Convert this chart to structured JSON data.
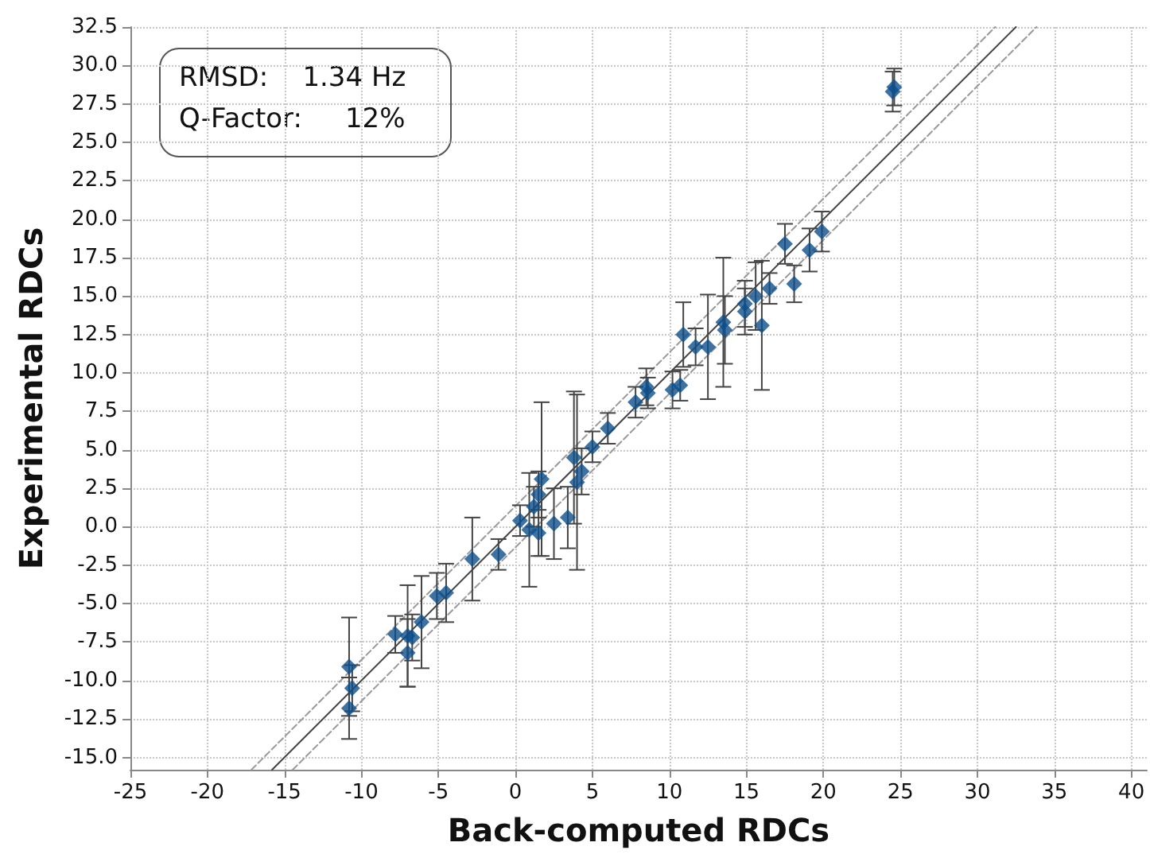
{
  "chart_data": {
    "type": "scatter",
    "xlabel": "Back-computed RDCs",
    "ylabel": "Experimental RDCs",
    "annotations": [
      "RMSD:    1.34 Hz",
      "Q-Factor:     12%"
    ],
    "xlim": [
      -25,
      41
    ],
    "ylim": [
      -15.8,
      32.5
    ],
    "xticks": [
      -25,
      -20,
      -15,
      -10,
      -5,
      0,
      5,
      10,
      15,
      20,
      25,
      30,
      35,
      40
    ],
    "yticks": [
      {
        "value": -15,
        "label": "-15.0"
      },
      {
        "value": -12.5,
        "label": "-12.5"
      },
      {
        "value": -10,
        "label": "-10.0"
      },
      {
        "value": -7.5,
        "label": "-7.5"
      },
      {
        "value": -5,
        "label": "-5.0"
      },
      {
        "value": -2.5,
        "label": "-2.5"
      },
      {
        "value": 0,
        "label": "0.0"
      },
      {
        "value": 2.5,
        "label": "2.5"
      },
      {
        "value": 5,
        "label": "5.0"
      },
      {
        "value": 7.5,
        "label": "7.5"
      },
      {
        "value": 10,
        "label": "10.0"
      },
      {
        "value": 12.5,
        "label": "12.5"
      },
      {
        "value": 15,
        "label": "15.0"
      },
      {
        "value": 17.5,
        "label": "17.5"
      },
      {
        "value": 20,
        "label": "20.0"
      },
      {
        "value": 22.5,
        "label": "22.5"
      },
      {
        "value": 25,
        "label": "25.0"
      },
      {
        "value": 27.5,
        "label": "27.5"
      },
      {
        "value": 30,
        "label": "30.0"
      },
      {
        "value": 32.5,
        "label": "32.5"
      }
    ],
    "grid": true,
    "series": [
      {
        "type": "line",
        "color": "#444444",
        "line_style": "solid",
        "marker": "none",
        "x": [
          -15.8,
          32.5
        ],
        "values": [
          -15.8,
          32.5
        ]
      },
      {
        "type": "line",
        "color": "#999999",
        "line_style": "dashed",
        "marker": "none",
        "x": [
          -17.14,
          31.16
        ],
        "values": [
          -15.8,
          32.5
        ]
      },
      {
        "type": "line",
        "color": "#999999",
        "line_style": "dashed",
        "marker": "none",
        "x": [
          -14.46,
          33.84
        ],
        "values": [
          -15.8,
          32.5
        ]
      },
      {
        "color": "#0d4f8b",
        "marker": "diamond",
        "x": [
          24.6,
          24.5,
          19.9,
          19.1,
          17.5,
          18.1,
          16.5,
          15.6,
          14.9,
          14.9,
          16.0,
          13.5,
          13.6,
          10.9,
          11.7,
          12.5,
          8.5,
          8.6,
          7.8,
          10.7,
          10.2,
          6.0,
          5.0,
          3.8,
          4.3,
          4.0,
          1.7,
          1.5,
          1.2,
          0.3,
          2.5,
          3.4,
          0.9,
          1.5,
          -1.1,
          -2.8,
          -4.5,
          -5.1,
          -6.1,
          -7.8,
          -7.0,
          -6.7,
          -7.0,
          -10.8,
          -10.6,
          -10.8
        ],
        "values": [
          28.6,
          28.3,
          19.2,
          18.0,
          18.4,
          15.8,
          15.5,
          15.0,
          14.5,
          14.0,
          13.1,
          13.3,
          12.8,
          12.5,
          11.7,
          11.7,
          9.1,
          8.7,
          8.1,
          9.2,
          8.9,
          6.4,
          5.2,
          4.5,
          3.6,
          2.9,
          3.1,
          2.1,
          1.3,
          0.4,
          0.2,
          0.6,
          -0.2,
          -0.4,
          -1.8,
          -2.1,
          -4.3,
          -4.5,
          -6.2,
          -7.0,
          -7.1,
          -7.2,
          -8.2,
          -9.1,
          -10.5,
          -11.8
        ],
        "errors": [
          1.2,
          1.3,
          1.3,
          1.4,
          1.3,
          1.2,
          1.0,
          2.2,
          1.5,
          1.5,
          4.2,
          4.2,
          2.2,
          2.1,
          1.2,
          3.4,
          1.2,
          1.0,
          1.0,
          1.0,
          1.2,
          1.0,
          1.0,
          4.3,
          1.5,
          5.7,
          5.0,
          1.5,
          1.3,
          1.0,
          2.3,
          2.0,
          3.7,
          1.5,
          1.0,
          2.7,
          1.9,
          1.5,
          3.0,
          1.2,
          3.3,
          1.5,
          2.2,
          3.2,
          1.5,
          2.0
        ]
      }
    ]
  }
}
